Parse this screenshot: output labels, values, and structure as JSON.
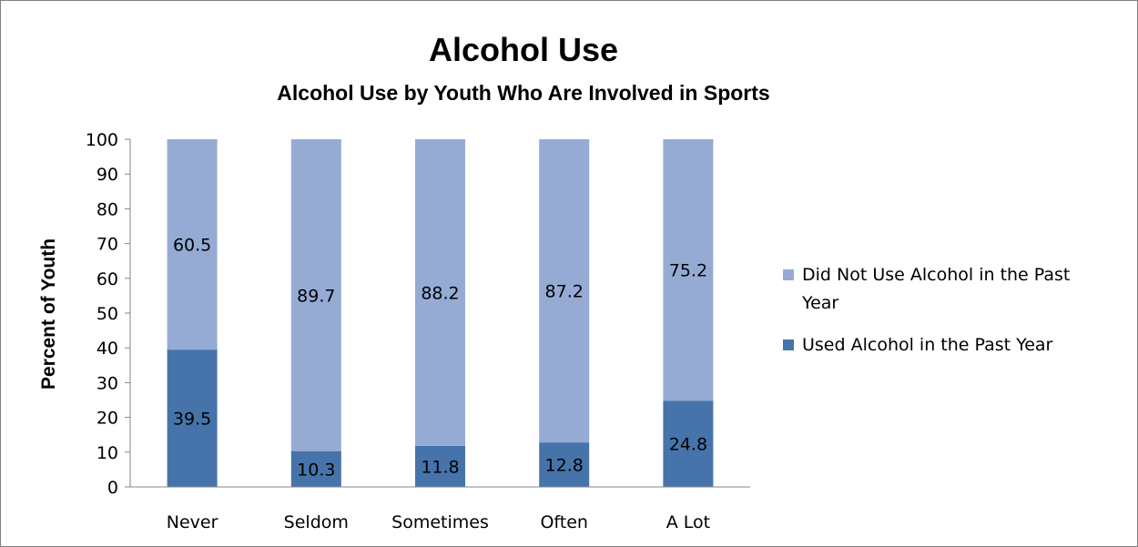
{
  "chart_data": {
    "type": "bar",
    "stacked": true,
    "title": "Alcohol Use",
    "subtitle": "Alcohol Use by Youth Who Are Involved in Sports",
    "ylabel": "Percent of Youth",
    "xlabel": "",
    "ylim": [
      0,
      100
    ],
    "yticks": [
      "0",
      "10",
      "20",
      "30",
      "40",
      "50",
      "60",
      "70",
      "80",
      "90",
      "100"
    ],
    "grid": false,
    "legend_position": "right",
    "categories": [
      "Never",
      "Seldom",
      "Sometimes",
      "Often",
      "A Lot"
    ],
    "series": [
      {
        "name": "Used Alcohol in the Past Year",
        "color": "#4674aa",
        "values": [
          39.5,
          10.3,
          11.8,
          12.8,
          24.8
        ],
        "labels": [
          "39.5",
          "10.3",
          "11.8",
          "12.8",
          "24.8"
        ]
      },
      {
        "name": "Did Not Use Alcohol in the Past Year",
        "color": "#95abd4",
        "values": [
          60.5,
          89.7,
          88.2,
          87.2,
          75.2
        ],
        "labels": [
          "60.5",
          "89.7",
          "88.2",
          "87.2",
          "75.2"
        ]
      }
    ],
    "legend": [
      {
        "series": 1,
        "lines": [
          "Did Not Use Alcohol in the Past",
          "Year"
        ]
      },
      {
        "series": 0,
        "lines": [
          "Used Alcohol in the Past Year"
        ]
      }
    ]
  }
}
